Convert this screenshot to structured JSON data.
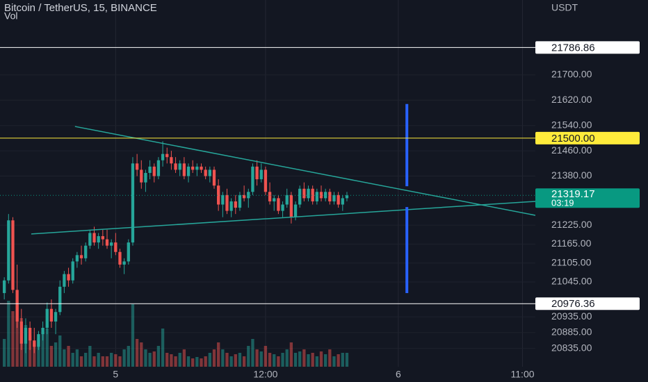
{
  "chart_data": {
    "type": "candlestick",
    "title": "Bitcoin / TetherUS, 15, BINANCE",
    "volume_label": "Vol",
    "currency": "USDT",
    "up_color": "#26a69a",
    "down_color": "#ef5350",
    "candles": [
      [
        21010,
        21060,
        20990,
        21050
      ],
      [
        21050,
        21260,
        21040,
        21240
      ],
      [
        21240,
        21250,
        21010,
        21020
      ],
      [
        21020,
        21100,
        20900,
        20920
      ],
      [
        20920,
        20960,
        20830,
        20850
      ],
      [
        20850,
        20930,
        20820,
        20900
      ],
      [
        20900,
        20920,
        20830,
        20860
      ],
      [
        20860,
        20900,
        20820,
        20840
      ],
      [
        20840,
        20890,
        20830,
        20880
      ],
      [
        20880,
        20920,
        20860,
        20900
      ],
      [
        20900,
        20980,
        20880,
        20960
      ],
      [
        20960,
        20990,
        20900,
        20920
      ],
      [
        20920,
        20960,
        20880,
        20950
      ],
      [
        20950,
        21050,
        20940,
        21030
      ],
      [
        21030,
        21080,
        21010,
        21070
      ],
      [
        21070,
        21090,
        21030,
        21050
      ],
      [
        21050,
        21120,
        21040,
        21110
      ],
      [
        21110,
        21140,
        21090,
        21130
      ],
      [
        21130,
        21160,
        21100,
        21120
      ],
      [
        21120,
        21170,
        21110,
        21160
      ],
      [
        21160,
        21210,
        21150,
        21200
      ],
      [
        21200,
        21220,
        21160,
        21170
      ],
      [
        21170,
        21200,
        21150,
        21190
      ],
      [
        21190,
        21210,
        21160,
        21180
      ],
      [
        21180,
        21210,
        21150,
        21160
      ],
      [
        21160,
        21180,
        21120,
        21170
      ],
      [
        21170,
        21200,
        21130,
        21140
      ],
      [
        21140,
        21150,
        21090,
        21100
      ],
      [
        21100,
        21120,
        21070,
        21110
      ],
      [
        21110,
        21180,
        21100,
        21170
      ],
      [
        21170,
        21440,
        21160,
        21420
      ],
      [
        21420,
        21450,
        21380,
        21400
      ],
      [
        21400,
        21430,
        21340,
        21360
      ],
      [
        21360,
        21400,
        21330,
        21390
      ],
      [
        21390,
        21430,
        21370,
        21410
      ],
      [
        21410,
        21420,
        21360,
        21380
      ],
      [
        21380,
        21440,
        21370,
        21430
      ],
      [
        21430,
        21490,
        21410,
        21450
      ],
      [
        21450,
        21470,
        21420,
        21440
      ],
      [
        21440,
        21460,
        21400,
        21420
      ],
      [
        21420,
        21440,
        21390,
        21400
      ],
      [
        21400,
        21430,
        21380,
        21420
      ],
      [
        21420,
        21440,
        21370,
        21380
      ],
      [
        21380,
        21420,
        21360,
        21410
      ],
      [
        21410,
        21430,
        21390,
        21400
      ],
      [
        21400,
        21420,
        21380,
        21410
      ],
      [
        21410,
        21420,
        21390,
        21400
      ],
      [
        21400,
        21410,
        21370,
        21380
      ],
      [
        21380,
        21410,
        21360,
        21400
      ],
      [
        21400,
        21410,
        21340,
        21350
      ],
      [
        21350,
        21370,
        21270,
        21290
      ],
      [
        21290,
        21330,
        21250,
        21320
      ],
      [
        21320,
        21340,
        21260,
        21270
      ],
      [
        21270,
        21310,
        21250,
        21300
      ],
      [
        21300,
        21320,
        21260,
        21280
      ],
      [
        21280,
        21330,
        21270,
        21320
      ],
      [
        21320,
        21350,
        21300,
        21310
      ],
      [
        21310,
        21340,
        21280,
        21330
      ],
      [
        21330,
        21420,
        21320,
        21410
      ],
      [
        21410,
        21430,
        21350,
        21370
      ],
      [
        21370,
        21420,
        21360,
        21400
      ],
      [
        21400,
        21410,
        21320,
        21330
      ],
      [
        21330,
        21360,
        21290,
        21300
      ],
      [
        21300,
        21320,
        21270,
        21310
      ],
      [
        21310,
        21320,
        21260,
        21270
      ],
      [
        21270,
        21300,
        21250,
        21290
      ],
      [
        21290,
        21340,
        21280,
        21320
      ],
      [
        21320,
        21330,
        21230,
        21250
      ],
      [
        21250,
        21300,
        21240,
        21290
      ],
      [
        21290,
        21350,
        21280,
        21340
      ],
      [
        21340,
        21360,
        21300,
        21310
      ],
      [
        21310,
        21350,
        21300,
        21340
      ],
      [
        21340,
        21350,
        21290,
        21300
      ],
      [
        21300,
        21340,
        21290,
        21330
      ],
      [
        21330,
        21350,
        21300,
        21310
      ],
      [
        21310,
        21340,
        21300,
        21330
      ],
      [
        21330,
        21340,
        21290,
        21300
      ],
      [
        21300,
        21330,
        21290,
        21320
      ],
      [
        21320,
        21330,
        21280,
        21290
      ],
      [
        21290,
        21320,
        21270,
        21310
      ],
      [
        21310,
        21330,
        21300,
        21319.17
      ]
    ],
    "volume": [
      40,
      95,
      80,
      90,
      70,
      60,
      45,
      35,
      40,
      50,
      55,
      30,
      35,
      45,
      25,
      30,
      20,
      25,
      15,
      20,
      30,
      15,
      20,
      15,
      15,
      20,
      18,
      15,
      25,
      30,
      90,
      40,
      35,
      25,
      20,
      22,
      30,
      55,
      20,
      18,
      15,
      20,
      25,
      15,
      12,
      14,
      12,
      15,
      20,
      25,
      35,
      25,
      20,
      15,
      18,
      20,
      15,
      30,
      40,
      25,
      22,
      30,
      20,
      18,
      15,
      20,
      25,
      35,
      20,
      22,
      25,
      18,
      20,
      15,
      22,
      18,
      25,
      15,
      18,
      20,
      20
    ],
    "xlim": [
      -1,
      124
    ],
    "xticks": [
      {
        "value": 26,
        "label": "5"
      },
      {
        "value": 61,
        "label": "12:00"
      },
      {
        "value": 92,
        "label": "6"
      },
      {
        "value": 121,
        "label": "11:00"
      }
    ],
    "ylim": [
      20777,
      21937
    ],
    "yticks": [
      {
        "value": 21700,
        "label": "21700.00"
      },
      {
        "value": 21620,
        "label": "21620.00"
      },
      {
        "value": 21540,
        "label": "21540.00"
      },
      {
        "value": 21460,
        "label": "21460.00"
      },
      {
        "value": 21380,
        "label": "21380.00"
      },
      {
        "value": 21225,
        "label": "21225.00"
      },
      {
        "value": 21165,
        "label": "21165.00"
      },
      {
        "value": 21105,
        "label": "21105.00"
      },
      {
        "value": 21045,
        "label": "21045.00"
      },
      {
        "value": 20935,
        "label": "20935.00"
      },
      {
        "value": 20885,
        "label": "20885.00"
      },
      {
        "value": 20835,
        "label": "20835.00"
      }
    ],
    "grid": true,
    "levels": [
      {
        "value": 21786.86,
        "color": "#ffffff"
      },
      {
        "value": 21500,
        "label": "21500.00",
        "color": "#ffeb3b"
      },
      {
        "value": 20976.36,
        "color": "#ffffff"
      }
    ],
    "last_price": {
      "value": 21319.17,
      "countdown": "03:19",
      "color": "#089981"
    },
    "trendlines": [
      {
        "color": "#26a69a",
        "points": [
          [
            16.5,
            21537
          ],
          [
            124,
            21256
          ]
        ]
      },
      {
        "color": "#26a69a",
        "points": [
          [
            6.3,
            21197
          ],
          [
            124,
            21300
          ]
        ]
      }
    ],
    "markers": [
      {
        "color": "#2962ff",
        "x": 94,
        "from": 21608,
        "to": 21348
      },
      {
        "color": "#2962ff",
        "x": 94,
        "from": 21282,
        "to": 21010
      }
    ]
  }
}
